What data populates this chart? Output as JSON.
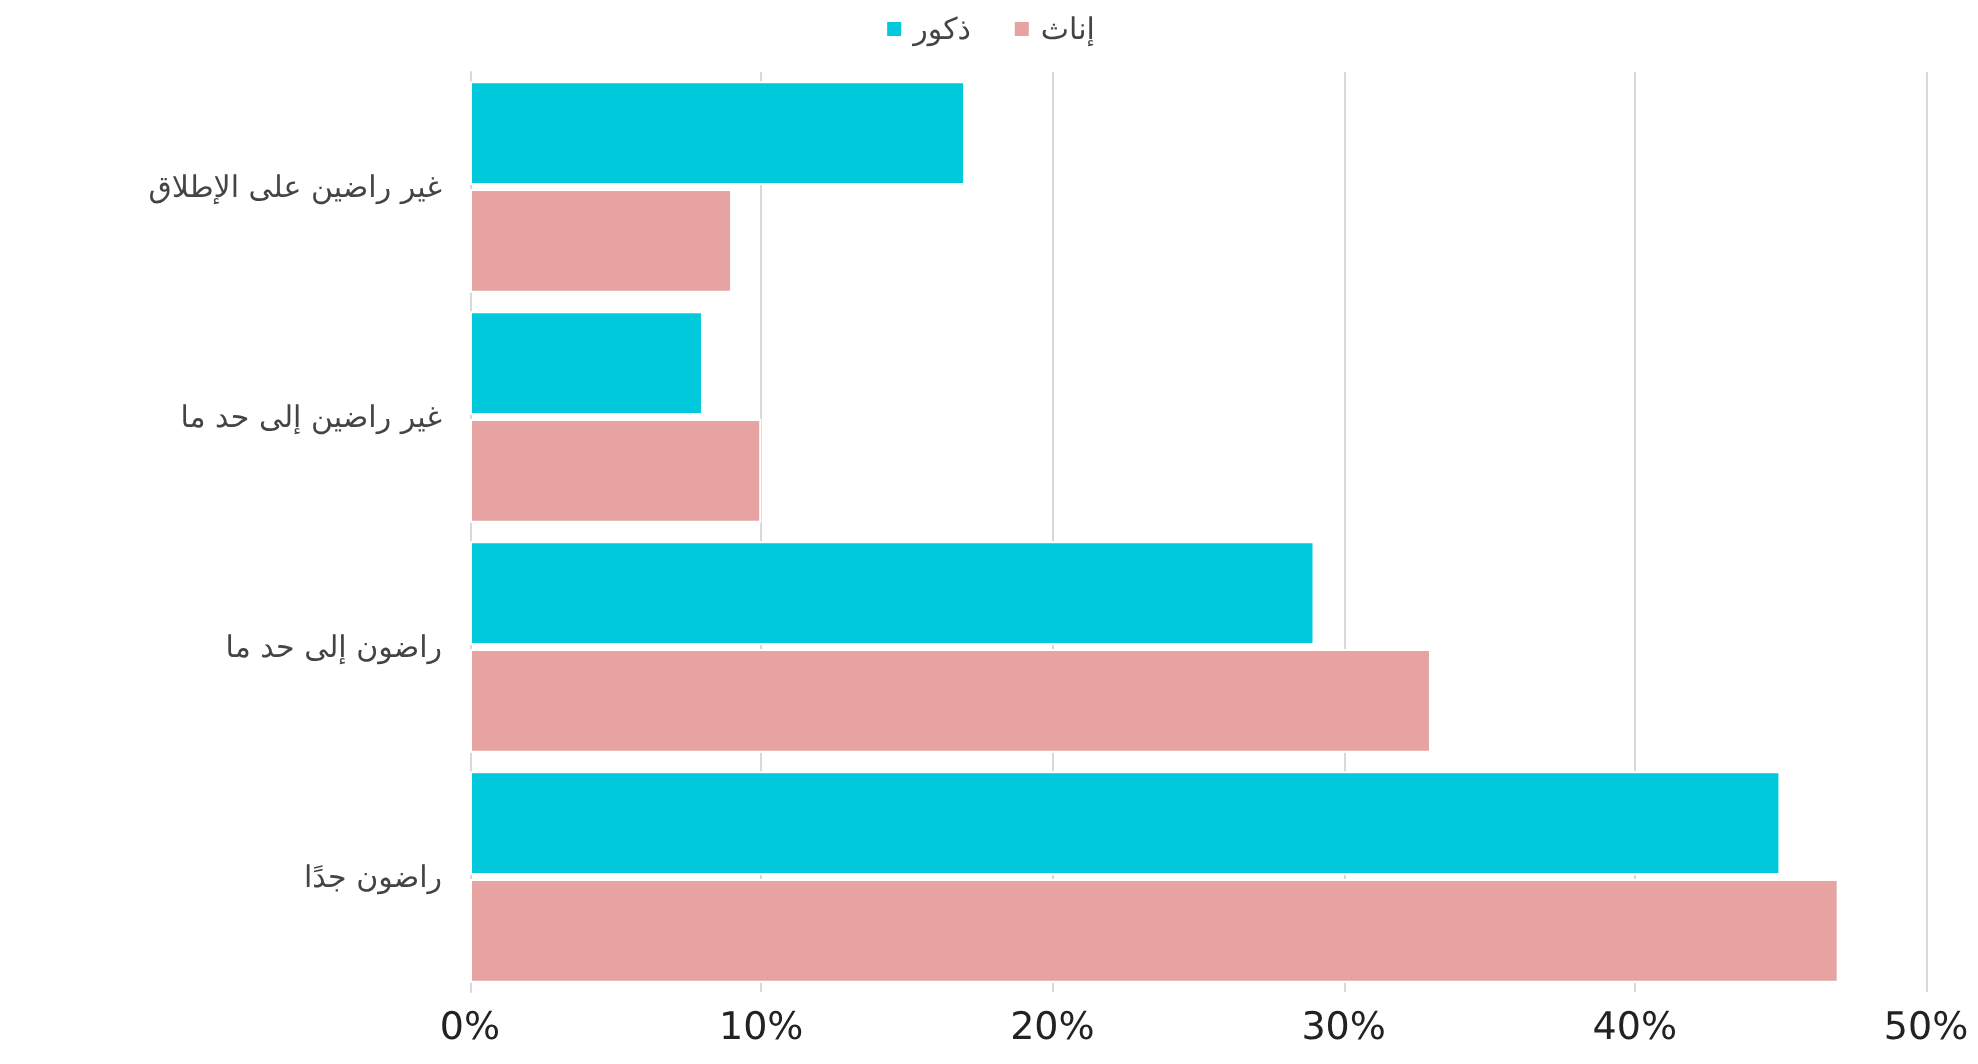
{
  "chart_data": {
    "type": "bar",
    "orientation": "horizontal",
    "categories": [
      "غير راضين على الإطلاق",
      "غير راضين إلى حد ما",
      "راضون إلى حد ما",
      "راضون جدًا"
    ],
    "series": [
      {
        "name": "ذكور",
        "color": "#00c9dc",
        "values": [
          17,
          8,
          29,
          45
        ]
      },
      {
        "name": "إناث",
        "color": "#e6a3a2",
        "values": [
          9,
          10,
          33,
          47
        ]
      }
    ],
    "xlim": [
      0,
      50
    ],
    "xticks": [
      {
        "value": 0,
        "label": "0%"
      },
      {
        "value": 10,
        "label": "10%"
      },
      {
        "value": 20,
        "label": "20%"
      },
      {
        "value": 30,
        "label": "30%"
      },
      {
        "value": 40,
        "label": "40%"
      },
      {
        "value": 50,
        "label": "50%"
      }
    ],
    "grid": "x",
    "legend": "top"
  }
}
